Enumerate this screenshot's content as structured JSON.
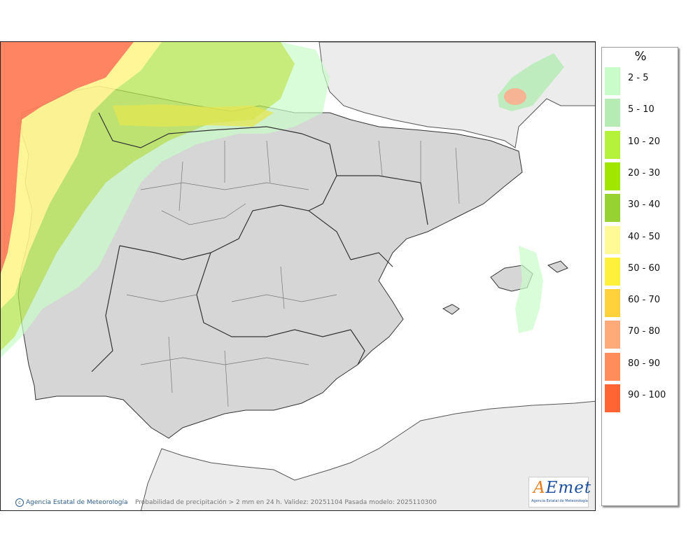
{
  "map": {
    "caption": "Probabilidad de precipitación > 2 mm en 24 h. Validez: 20251104 Pasada modelo: 2025110300",
    "credit": "Agencia Estatal de Meteorología",
    "logo_text": "AEmet",
    "logo_subtitle": "Agencia Estatal de Meteorología"
  },
  "legend": {
    "title": "%",
    "items": [
      {
        "label": "2 - 5",
        "color": "#c8fcc8"
      },
      {
        "label": "5 - 10",
        "color": "#b4ecb4"
      },
      {
        "label": "10 - 20",
        "color": "#b4f23c"
      },
      {
        "label": "20 - 30",
        "color": "#a0e600"
      },
      {
        "label": "30 - 40",
        "color": "#96d232"
      },
      {
        "label": "40 - 50",
        "color": "#fffa96"
      },
      {
        "label": "50 - 60",
        "color": "#fff03c"
      },
      {
        "label": "60 - 70",
        "color": "#ffd23c"
      },
      {
        "label": "70 - 80",
        "color": "#ffaa78"
      },
      {
        "label": "80 - 90",
        "color": "#ff8c5a"
      },
      {
        "label": "90 - 100",
        "color": "#ff6432"
      }
    ]
  }
}
